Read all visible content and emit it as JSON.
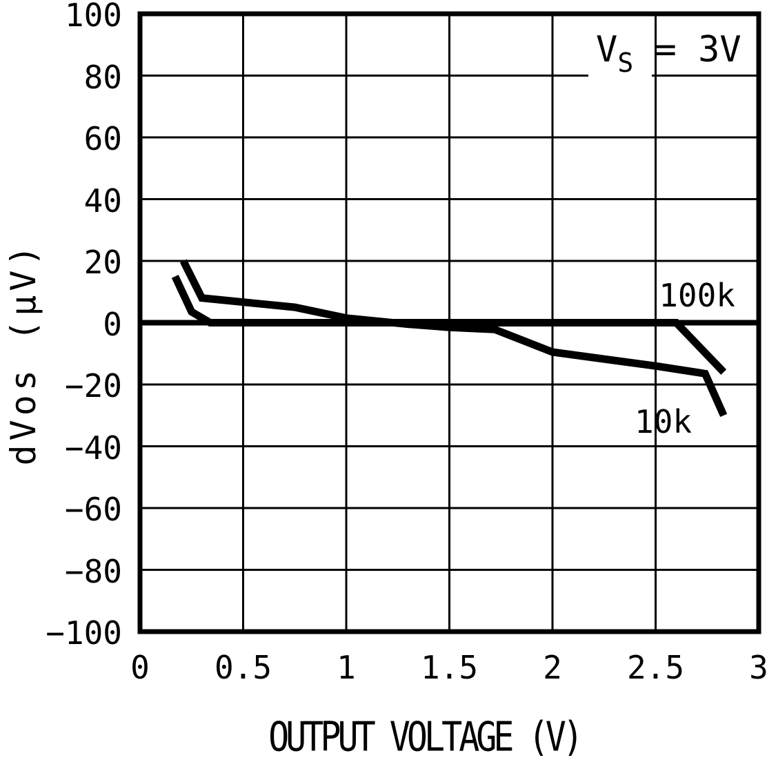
{
  "colors": {
    "ink": "#000000",
    "background": "#ffffff"
  },
  "chart_data": {
    "type": "line",
    "title": "",
    "xlabel": "OUTPUT VOLTAGE (V)",
    "ylabel": "dVos (µV)",
    "xlim": [
      0,
      3
    ],
    "ylim": [
      -100,
      100
    ],
    "grid": true,
    "legend_position": "inline-labels",
    "xtick_values": [
      0,
      0.5,
      1,
      1.5,
      2,
      2.5,
      3
    ],
    "xtick_labels": [
      "0",
      "0.5",
      "1",
      "1.5",
      "2",
      "2.5",
      "3"
    ],
    "ytick_values": [
      100,
      80,
      60,
      40,
      20,
      0,
      -20,
      -40,
      -60,
      -80,
      -100
    ],
    "ytick_labels": [
      "100",
      "80",
      "60",
      "40",
      "20",
      "0",
      "−20",
      "−40",
      "−60",
      "−80",
      "−100"
    ],
    "zero_axis_emphasis": true,
    "annotation": {
      "pre": "V",
      "sub": "S",
      "post": " = 3V"
    },
    "series": [
      {
        "name": "100k",
        "label": "100k",
        "points": [
          [
            0.17,
            15
          ],
          [
            0.25,
            3.5
          ],
          [
            0.34,
            0
          ],
          [
            2.6,
            0
          ],
          [
            2.83,
            -16
          ]
        ]
      },
      {
        "name": "10k",
        "label": "10k",
        "points": [
          [
            0.21,
            20
          ],
          [
            0.3,
            8
          ],
          [
            0.75,
            5
          ],
          [
            1.0,
            1.5
          ],
          [
            1.3,
            -0.5
          ],
          [
            1.5,
            -1.5
          ],
          [
            1.72,
            -2.2
          ],
          [
            2.0,
            -9.5
          ],
          [
            2.5,
            -14
          ],
          [
            2.74,
            -16.5
          ],
          [
            2.83,
            -30
          ]
        ]
      }
    ]
  }
}
